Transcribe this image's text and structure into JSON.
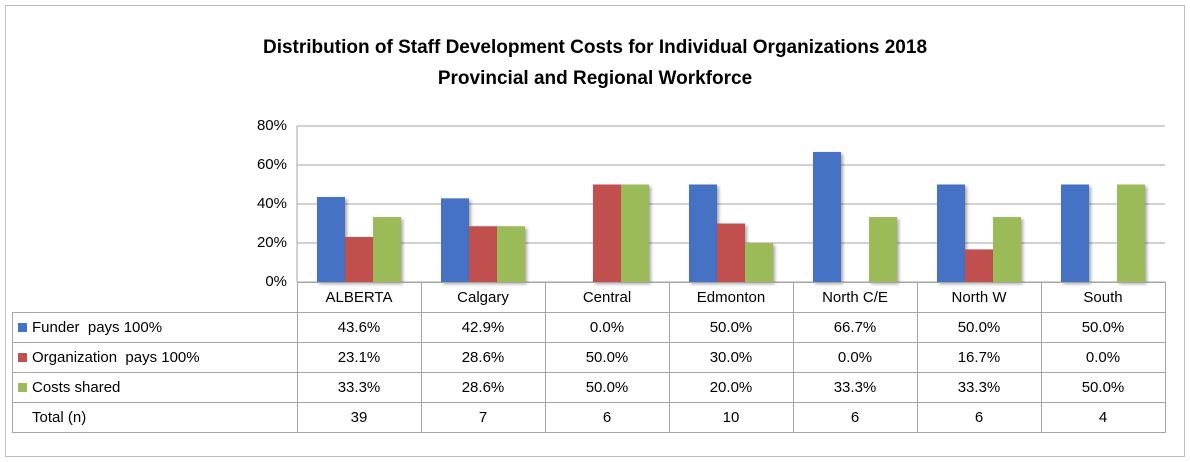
{
  "chart_data": {
    "type": "bar",
    "title": [
      "Distribution of Staff Development Costs for Individual Organizations 2018",
      "Provincial and Regional Workforce"
    ],
    "categories": [
      "ALBERTA",
      "Calgary",
      "Central",
      "Edmonton",
      "North C/E",
      "North W",
      "South"
    ],
    "series": [
      {
        "name": "Funder  pays 100%",
        "color": "#4472c4",
        "values": [
          43.6,
          42.9,
          0.0,
          50.0,
          66.7,
          50.0,
          50.0
        ],
        "value_labels": [
          "43.6%",
          "42.9%",
          "0.0%",
          "50.0%",
          "66.7%",
          "50.0%",
          "50.0%"
        ]
      },
      {
        "name": "Organization  pays 100%",
        "color": "#c0504d",
        "values": [
          23.1,
          28.6,
          50.0,
          30.0,
          0.0,
          16.7,
          0.0
        ],
        "value_labels": [
          "23.1%",
          "28.6%",
          "50.0%",
          "30.0%",
          "0.0%",
          "16.7%",
          "0.0%"
        ]
      },
      {
        "name": "Costs shared",
        "color": "#9bbb59",
        "values": [
          33.3,
          28.6,
          50.0,
          20.0,
          33.3,
          33.3,
          50.0
        ],
        "value_labels": [
          "33.3%",
          "28.6%",
          "50.0%",
          "20.0%",
          "33.3%",
          "33.3%",
          "50.0%"
        ]
      }
    ],
    "total": {
      "label": "Total (n)",
      "values": [
        39,
        7,
        6,
        10,
        6,
        6,
        4
      ]
    },
    "ylim": [
      0,
      80
    ],
    "yticks": [
      {
        "value": 0,
        "label": "0%"
      },
      {
        "value": 20,
        "label": "20%"
      },
      {
        "value": 40,
        "label": "40%"
      },
      {
        "value": 60,
        "label": "60%"
      },
      {
        "value": 80,
        "label": "80%"
      }
    ],
    "grid": true
  }
}
